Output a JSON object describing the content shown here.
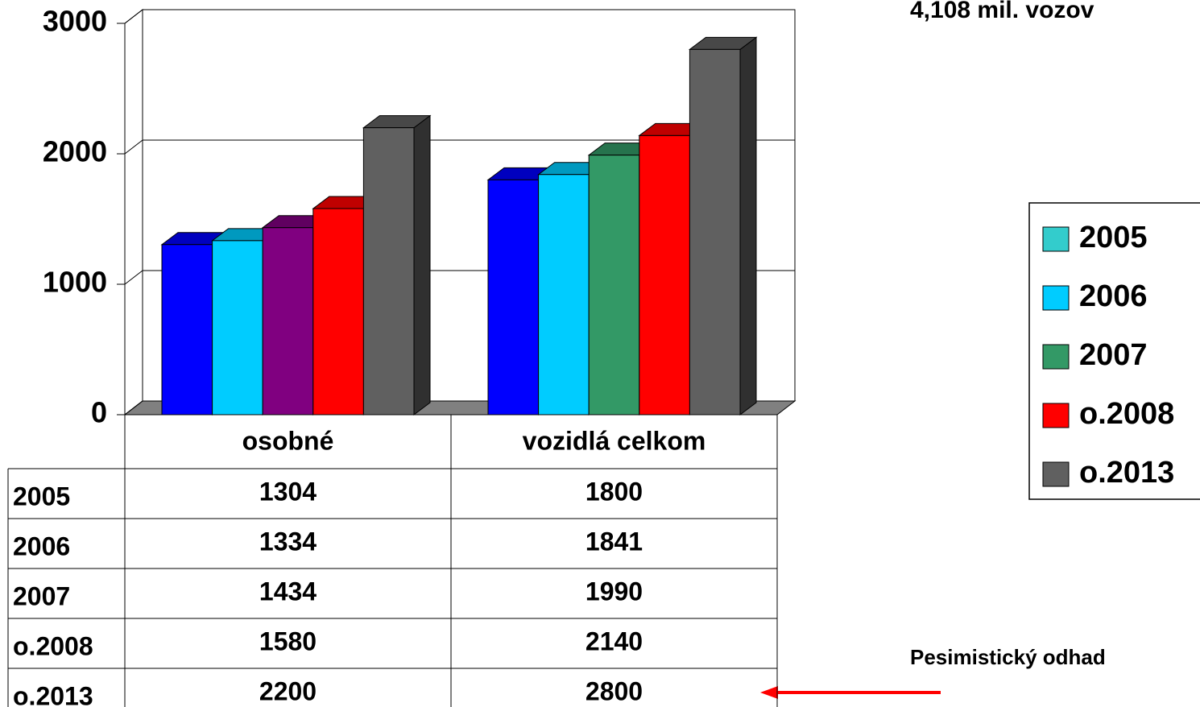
{
  "chart_data": {
    "type": "bar3d",
    "title": "4,108 mil. vozov",
    "annotation": "Pesimistický odhad",
    "categories": [
      "osobné",
      "vozidlá celkom"
    ],
    "series": [
      {
        "name": "2005",
        "color": "#33cccc",
        "bar_colors": [
          "#0000ff",
          "#0000ff"
        ],
        "values": [
          1304,
          1800
        ]
      },
      {
        "name": "2006",
        "color": "#00ccff",
        "bar_colors": [
          "#00ccff",
          "#00ccff"
        ],
        "values": [
          1334,
          1841
        ]
      },
      {
        "name": "2007",
        "color": "#339966",
        "bar_colors": [
          "#800080",
          "#339966"
        ],
        "values": [
          1434,
          1990
        ]
      },
      {
        "name": "o.2008",
        "color": "#ff0000",
        "bar_colors": [
          "#ff0000",
          "#ff0000"
        ],
        "values": [
          1580,
          2140
        ]
      },
      {
        "name": "o.2013",
        "color": "#606060",
        "bar_colors": [
          "#606060",
          "#606060"
        ],
        "values": [
          2200,
          2800
        ]
      }
    ],
    "ylim": [
      0,
      3000
    ],
    "yticks": [
      0,
      1000,
      2000,
      3000
    ],
    "grid": true
  }
}
